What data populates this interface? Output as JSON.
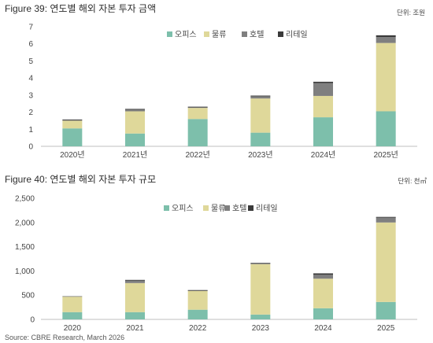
{
  "source": "Source: CBRE Research, March 2026",
  "colors": {
    "office": "#7dbfab",
    "logistics": "#dfd89a",
    "hotel": "#7f7f7f",
    "retail": "#3a3a3a",
    "axis": "#bfbfbf"
  },
  "charts": [
    {
      "title": "Figure 39: 연도별 해외 자본 투자 금액",
      "unit": "단위: 조원"
    },
    {
      "title": "Figure 40: 연도별 해외 자본 투자 규모",
      "unit": "단위: 천㎡"
    }
  ],
  "chart_data": [
    {
      "type": "bar",
      "stacked": true,
      "title": "Figure 39: 연도별 해외 자본 투자 금액",
      "unit": "단위: 조원",
      "categories": [
        "2020년",
        "2021년",
        "2022년",
        "2023년",
        "2024년",
        "2025년"
      ],
      "yticks": [
        "0",
        "1",
        "2",
        "3",
        "4",
        "5",
        "6",
        "7"
      ],
      "ylim": [
        0,
        7
      ],
      "legend_position": "top-right",
      "series": [
        {
          "name": "오피스",
          "color": "#7dbfab",
          "values": [
            1.05,
            0.75,
            1.6,
            0.8,
            1.7,
            2.05
          ]
        },
        {
          "name": "물류",
          "color": "#dfd89a",
          "values": [
            0.45,
            1.3,
            0.65,
            2.0,
            1.25,
            4.0
          ]
        },
        {
          "name": "호텔",
          "color": "#7f7f7f",
          "values": [
            0.05,
            0.12,
            0.05,
            0.15,
            0.75,
            0.35
          ]
        },
        {
          "name": "리테일",
          "color": "#3a3a3a",
          "values": [
            0.02,
            0.02,
            0.02,
            0.02,
            0.08,
            0.1
          ]
        }
      ]
    },
    {
      "type": "bar",
      "stacked": true,
      "title": "Figure 40: 연도별 해외 자본 투자 규모",
      "unit": "단위: 천㎡",
      "categories": [
        "2020",
        "2021",
        "2022",
        "2023",
        "2024",
        "2025"
      ],
      "yticks": [
        "0",
        "500",
        "1,000",
        "1,500",
        "2,000",
        "2,500"
      ],
      "ylim": [
        0,
        2500
      ],
      "legend_position": "top-right",
      "series": [
        {
          "name": "오피스",
          "color": "#7dbfab",
          "values": [
            150,
            150,
            200,
            100,
            230,
            360
          ]
        },
        {
          "name": "물류",
          "color": "#dfd89a",
          "values": [
            320,
            600,
            390,
            1040,
            610,
            1640
          ]
        },
        {
          "name": "호텔",
          "color": "#7f7f7f",
          "values": [
            10,
            60,
            10,
            20,
            80,
            110
          ]
        },
        {
          "name": "리테일",
          "color": "#3a3a3a",
          "values": [
            0,
            5,
            5,
            5,
            30,
            5
          ]
        }
      ]
    }
  ]
}
